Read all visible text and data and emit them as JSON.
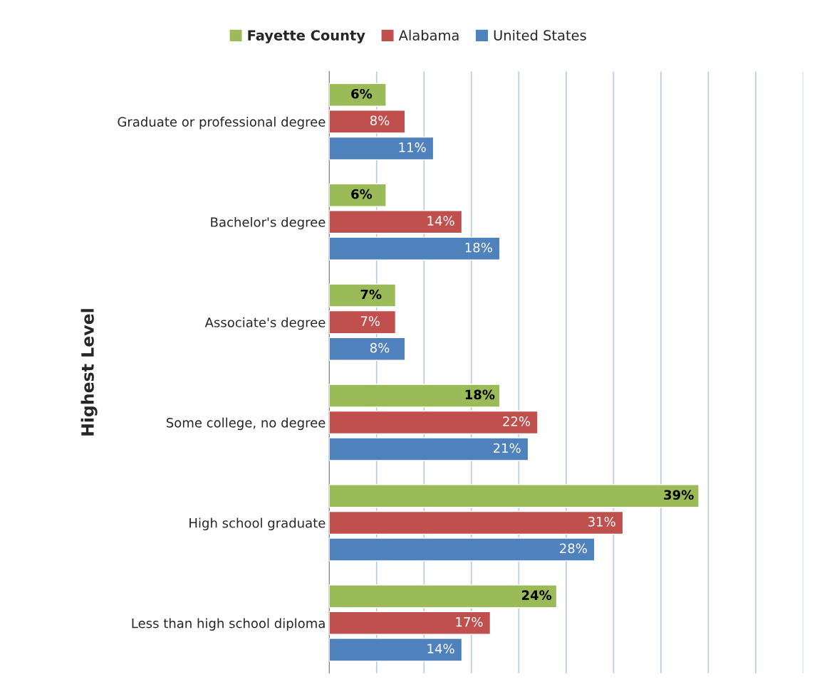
{
  "chart_data": {
    "type": "bar",
    "orientation": "horizontal",
    "ylabel": "Highest Level",
    "categories": [
      "Graduate or professional degree",
      "Bachelor's degree",
      "Associate's degree",
      "Some college, no degree",
      "High school graduate",
      "Less than high school diploma"
    ],
    "series": [
      {
        "name": "Fayette County",
        "color": "#9bbb59",
        "values": [
          6,
          6,
          7,
          18,
          39,
          24
        ],
        "value_labels": [
          "6%",
          "6%",
          "7%",
          "18%",
          "39%",
          "24%"
        ]
      },
      {
        "name": "Alabama",
        "color": "#c0504d",
        "values": [
          8,
          14,
          7,
          22,
          31,
          17
        ],
        "value_labels": [
          "8%",
          "14%",
          "7%",
          "22%",
          "31%",
          "17%"
        ]
      },
      {
        "name": "United States",
        "color": "#4f81bd",
        "values": [
          11,
          18,
          8,
          21,
          28,
          14
        ],
        "value_labels": [
          "11%",
          "18%",
          "8%",
          "21%",
          "28%",
          "14%"
        ]
      }
    ],
    "xlim": [
      0,
      50
    ],
    "xticks": [
      {
        "value": 0,
        "label": null
      },
      {
        "value": 5,
        "label": null
      },
      {
        "value": 10,
        "label": null
      },
      {
        "value": 15,
        "label": null
      },
      {
        "value": 20,
        "label": null
      },
      {
        "value": 25,
        "label": null
      },
      {
        "value": 30,
        "label": null
      },
      {
        "value": 35,
        "label": null
      },
      {
        "value": 40,
        "label": null
      },
      {
        "value": 45,
        "label": null
      },
      {
        "value": 50,
        "label": null
      }
    ],
    "tick_labels": "y",
    "grid": "x",
    "legend": "top"
  }
}
